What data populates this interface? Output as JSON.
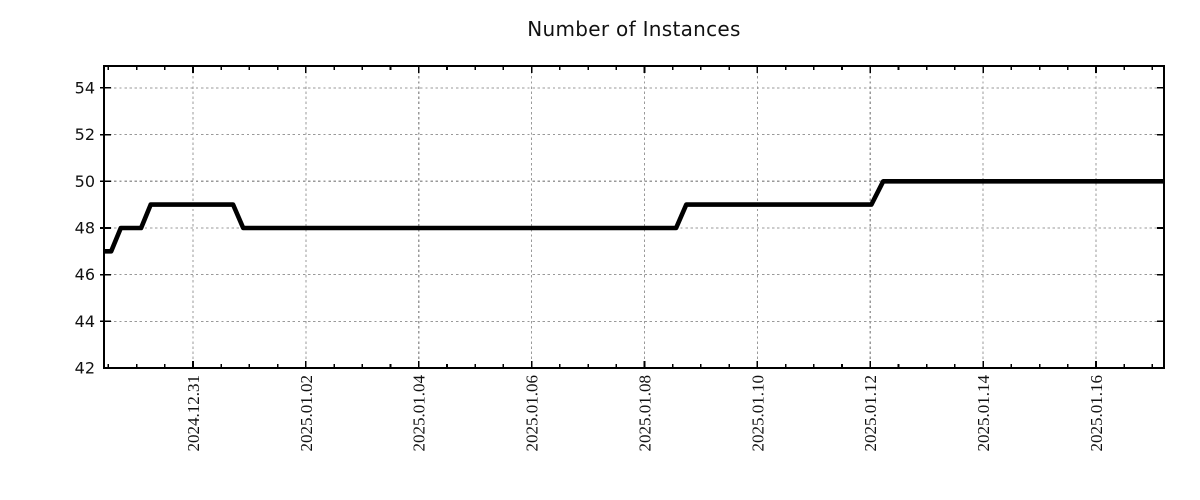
{
  "chart_data": {
    "type": "line",
    "title": "Number of Instances",
    "subtitle": "",
    "xlabel": "",
    "ylabel": "",
    "legend": "none",
    "grid": true,
    "line_style": "step-like thick solid",
    "x_unit": "days relative to 2024-12-31 (dates shown on axis)",
    "xlim": [
      -1.577,
      17.205
    ],
    "ylim": [
      42,
      54.94
    ],
    "x_ticks": [
      {
        "d": 0,
        "label": "2024.12.31"
      },
      {
        "d": 2,
        "label": "2025.01.02"
      },
      {
        "d": 4,
        "label": "2025.01.04"
      },
      {
        "d": 6,
        "label": "2025.01.06"
      },
      {
        "d": 8,
        "label": "2025.01.08"
      },
      {
        "d": 10,
        "label": "2025.01.10"
      },
      {
        "d": 12,
        "label": "2025.01.12"
      },
      {
        "d": 14,
        "label": "2025.01.14"
      },
      {
        "d": 16,
        "label": "2025.01.16"
      }
    ],
    "x_minor_tick_step_days": 0.5,
    "y_ticks": [
      42,
      44,
      46,
      48,
      50,
      52,
      54
    ],
    "series": [
      {
        "name": "instances",
        "color": "#000000",
        "points": [
          [
            -1.577,
            47
          ],
          [
            -1.45,
            47
          ],
          [
            -1.28,
            48
          ],
          [
            -0.92,
            48
          ],
          [
            -0.75,
            49
          ],
          [
            0.71,
            49
          ],
          [
            0.89,
            48
          ],
          [
            8.56,
            48
          ],
          [
            8.74,
            49
          ],
          [
            12.02,
            49
          ],
          [
            12.23,
            50
          ],
          [
            17.205,
            50
          ]
        ]
      }
    ],
    "colors": {
      "line": "#000000",
      "grid": "#999999",
      "axis": "#000000",
      "background": "#ffffff",
      "text": "#111111"
    }
  }
}
